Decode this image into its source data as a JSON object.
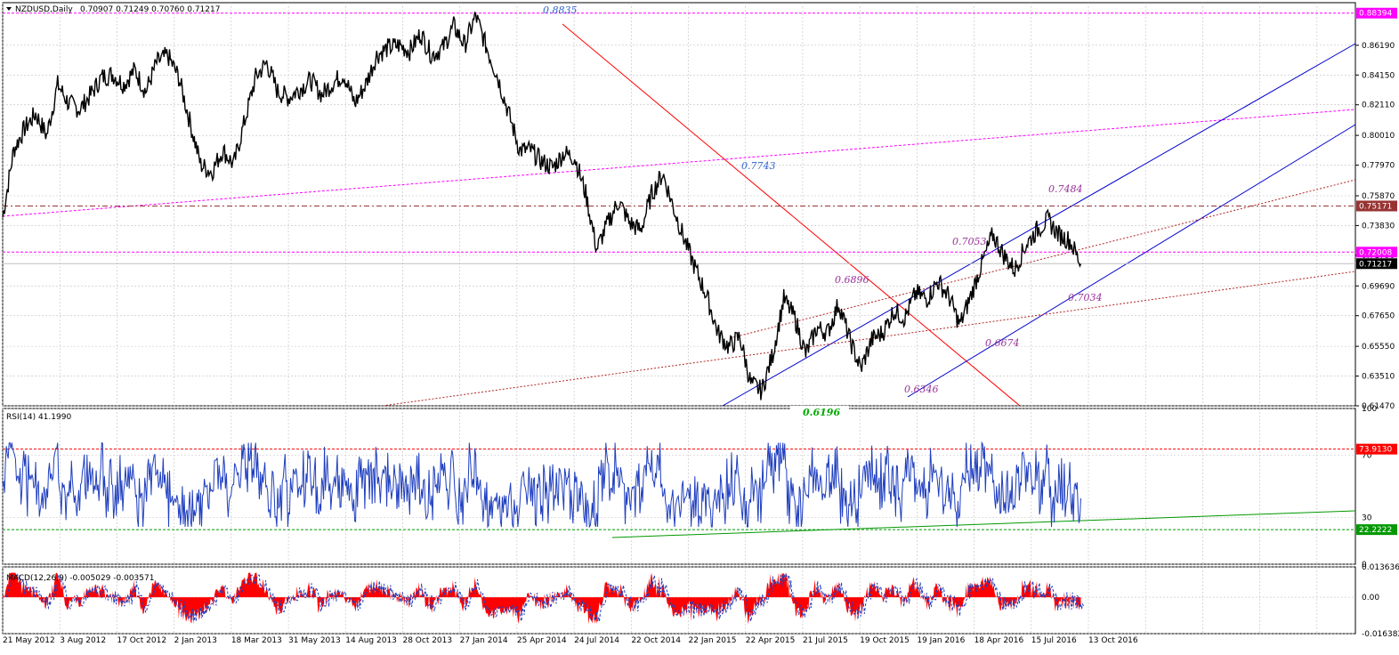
{
  "chart_data": {
    "type": "line",
    "price_panel": {
      "symbol_label": "NZDUSD,Daily",
      "ohlc_label": "0.70907 0.71249 0.70760 0.71217",
      "ylim": [
        0.6147,
        0.885
      ],
      "y_ticks": [
        "0.86190",
        "0.84150",
        "0.82110",
        "0.80010",
        "0.77970",
        "0.75870",
        "0.73830",
        "0.71790",
        "0.69690",
        "0.67650",
        "0.65550",
        "0.63510",
        "0.61470"
      ],
      "y_tick_values": [
        0.8619,
        0.8415,
        0.8211,
        0.8001,
        0.7797,
        0.7587,
        0.7383,
        0.7179,
        0.6969,
        0.6765,
        0.6555,
        0.6351,
        0.6147
      ],
      "price_tags": [
        {
          "label": "0.88394",
          "value": 0.88394,
          "color": "#ff00ff"
        },
        {
          "label": "0.75171",
          "value": 0.75171,
          "color": "#993333"
        },
        {
          "label": "0.72008",
          "value": 0.72008,
          "color": "#ff00ff"
        },
        {
          "label": "0.71217",
          "value": 0.71217,
          "color": "#000000"
        }
      ],
      "close_series": [
        [
          0,
          0.744
        ],
        [
          0.02,
          0.79
        ],
        [
          0.04,
          0.805
        ],
        [
          0.06,
          0.815
        ],
        [
          0.08,
          0.8
        ],
        [
          0.1,
          0.835
        ],
        [
          0.12,
          0.822
        ],
        [
          0.14,
          0.818
        ],
        [
          0.16,
          0.828
        ],
        [
          0.18,
          0.84
        ],
        [
          0.2,
          0.842
        ],
        [
          0.22,
          0.835
        ],
        [
          0.24,
          0.845
        ],
        [
          0.26,
          0.83
        ],
        [
          0.28,
          0.85
        ],
        [
          0.3,
          0.855
        ],
        [
          0.32,
          0.84
        ],
        [
          0.34,
          0.81
        ],
        [
          0.36,
          0.78
        ],
        [
          0.38,
          0.775
        ],
        [
          0.4,
          0.79
        ],
        [
          0.42,
          0.78
        ],
        [
          0.44,
          0.81
        ],
        [
          0.46,
          0.84
        ],
        [
          0.48,
          0.85
        ],
        [
          0.5,
          0.83
        ],
        [
          0.52,
          0.826
        ],
        [
          0.54,
          0.832
        ],
        [
          0.56,
          0.838
        ],
        [
          0.58,
          0.828
        ],
        [
          0.6,
          0.836
        ],
        [
          0.62,
          0.842
        ],
        [
          0.64,
          0.822
        ],
        [
          0.66,
          0.835
        ],
        [
          0.68,
          0.855
        ],
        [
          0.7,
          0.86
        ],
        [
          0.72,
          0.862
        ],
        [
          0.74,
          0.858
        ],
        [
          0.76,
          0.87
        ],
        [
          0.78,
          0.855
        ],
        [
          0.8,
          0.86
        ],
        [
          0.82,
          0.875
        ],
        [
          0.84,
          0.862
        ],
        [
          0.86,
          0.882
        ],
        [
          0.88,
          0.86
        ],
        [
          0.9,
          0.84
        ],
        [
          0.92,
          0.815
        ],
        [
          0.94,
          0.79
        ],
        [
          0.96,
          0.79
        ],
        [
          0.98,
          0.782
        ],
        [
          1.0,
          0.778
        ],
        [
          1.02,
          0.788
        ],
        [
          1.04,
          0.785
        ],
        [
          1.06,
          0.76
        ],
        [
          1.08,
          0.722
        ],
        [
          1.1,
          0.74
        ],
        [
          1.12,
          0.755
        ],
        [
          1.14,
          0.74
        ],
        [
          1.16,
          0.735
        ],
        [
          1.18,
          0.76
        ],
        [
          1.2,
          0.774
        ],
        [
          1.22,
          0.75
        ],
        [
          1.24,
          0.728
        ],
        [
          1.26,
          0.708
        ],
        [
          1.28,
          0.69
        ],
        [
          1.3,
          0.665
        ],
        [
          1.32,
          0.655
        ],
        [
          1.34,
          0.662
        ],
        [
          1.36,
          0.63
        ],
        [
          1.38,
          0.625
        ],
        [
          1.4,
          0.65
        ],
        [
          1.42,
          0.688
        ],
        [
          1.44,
          0.675
        ],
        [
          1.46,
          0.65
        ],
        [
          1.48,
          0.668
        ],
        [
          1.5,
          0.665
        ],
        [
          1.52,
          0.685
        ],
        [
          1.54,
          0.66
        ],
        [
          1.56,
          0.64
        ],
        [
          1.58,
          0.66
        ],
        [
          1.6,
          0.665
        ],
        [
          1.62,
          0.68
        ],
        [
          1.64,
          0.675
        ],
        [
          1.66,
          0.692
        ],
        [
          1.68,
          0.688
        ],
        [
          1.7,
          0.7
        ],
        [
          1.72,
          0.69
        ],
        [
          1.74,
          0.67
        ],
        [
          1.76,
          0.69
        ],
        [
          1.78,
          0.712
        ],
        [
          1.8,
          0.732
        ],
        [
          1.82,
          0.718
        ],
        [
          1.84,
          0.708
        ],
        [
          1.86,
          0.725
        ],
        [
          1.88,
          0.735
        ],
        [
          1.9,
          0.742
        ],
        [
          1.92,
          0.732
        ],
        [
          1.94,
          0.728
        ],
        [
          1.96,
          0.712
        ]
      ],
      "annotations": [
        {
          "label": "0.8835",
          "value": 0.8835,
          "color": "#3366cc"
        },
        {
          "label": "0.7743",
          "value": 0.7743,
          "color": "#3366cc"
        },
        {
          "label": "0.7484",
          "value": 0.7484,
          "color": "#993399"
        },
        {
          "label": "0.7053",
          "value": 0.7053,
          "color": "#993399"
        },
        {
          "label": "0.6896",
          "value": 0.6896,
          "color": "#993399"
        },
        {
          "label": "0.7034",
          "value": 0.7034,
          "color": "#993399"
        },
        {
          "label": "0.6674",
          "value": 0.6674,
          "color": "#993399"
        },
        {
          "label": "0.6346",
          "value": 0.6346,
          "color": "#993399"
        },
        {
          "label": "0.6196",
          "value": 0.6196,
          "color": "#00aa00"
        }
      ]
    },
    "rsi_panel": {
      "title": "RSI(14) 41.1990",
      "ylim": [
        0,
        100
      ],
      "y_ticks": [
        "100",
        "70",
        "30",
        "0"
      ],
      "y_tick_values": [
        100,
        70,
        30,
        0
      ],
      "levels": [
        {
          "label": "73.9130",
          "value": 73.913,
          "color": "#ff0000"
        },
        {
          "label": "22.2222",
          "value": 22.2222,
          "color": "#009900"
        }
      ]
    },
    "macd_panel": {
      "title": "MACD(12,26,9) -0.005029 -0.003571",
      "ylim": [
        -0.0163823,
        0.0136366
      ],
      "y_ticks": [
        "0.013636",
        "0.00",
        "-0.016382"
      ],
      "y_tick_values": [
        0.013636,
        0.0,
        -0.016382
      ]
    },
    "x_axis": {
      "labels": [
        "21 May 2012",
        "3 Aug 2012",
        "17 Oct 2012",
        "2 Jan 2013",
        "18 Mar 2013",
        "31 May 2013",
        "14 Aug 2013",
        "28 Oct 2013",
        "27 Jan 2014",
        "25 Apr 2014",
        "24 Jul 2014",
        "22 Oct 2014",
        "22 Jan 2015",
        "22 Apr 2015",
        "21 Jul 2015",
        "19 Oct 2015",
        "19 Jan 2016",
        "18 Apr 2016",
        "15 Jul 2016",
        "13 Oct 2016"
      ]
    }
  }
}
